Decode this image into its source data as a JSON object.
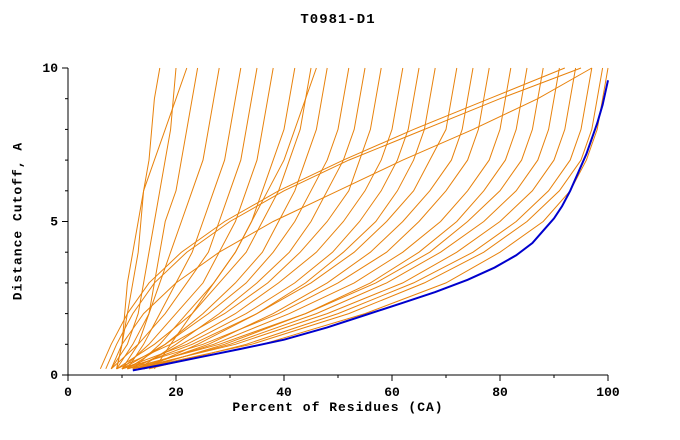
{
  "chart_data": {
    "type": "line",
    "title": "T0981-D1",
    "xlabel": "Percent of Residues (CA)",
    "ylabel": "Distance Cutoff, A",
    "xlim": [
      0,
      100
    ],
    "ylim": [
      0,
      10
    ],
    "xticks_major": [
      0,
      20,
      40,
      60,
      80,
      100
    ],
    "xticks_minor": [
      10,
      30,
      50,
      70,
      90
    ],
    "yticks_major": [
      0,
      5,
      10
    ],
    "yticks_minor": [
      1,
      2,
      3,
      4,
      6,
      7,
      8,
      9
    ],
    "grid": "off",
    "legend": "none",
    "colors": {
      "model_lines": "#e8820c",
      "highlight_line": "#0000cd",
      "axis": "#000000",
      "background": "#ffffff"
    },
    "sample_y": [
      0.2,
      1,
      2,
      3,
      4,
      5,
      6,
      7,
      8,
      9,
      10
    ],
    "model_series_x": [
      [
        9,
        10,
        11,
        12,
        13,
        13.5,
        14,
        15,
        15.5,
        16,
        17
      ],
      [
        8,
        11,
        13,
        14,
        15,
        16,
        17,
        18,
        19,
        19.5,
        20
      ],
      [
        10,
        13,
        15,
        16,
        17,
        18,
        20,
        21,
        22,
        23,
        24
      ],
      [
        9,
        12,
        15,
        17,
        19,
        21,
        23,
        25,
        26,
        27,
        28
      ],
      [
        11,
        14,
        17,
        20,
        23,
        25,
        27,
        29,
        30,
        31,
        32
      ],
      [
        8,
        13,
        18,
        22,
        26,
        28,
        30,
        32,
        33,
        34,
        35
      ],
      [
        10,
        15,
        20,
        25,
        28,
        31,
        33,
        35,
        36,
        37,
        38
      ],
      [
        12,
        17,
        22,
        27,
        31,
        34,
        36,
        38,
        40,
        41,
        42
      ],
      [
        9,
        16,
        23,
        28,
        33,
        36,
        39,
        41,
        43,
        44,
        45
      ],
      [
        11,
        18,
        25,
        31,
        36,
        39,
        42,
        44,
        46,
        47,
        48
      ],
      [
        10,
        18,
        26,
        33,
        38,
        42,
        45,
        48,
        50,
        51,
        52
      ],
      [
        13,
        20,
        28,
        35,
        41,
        45,
        48,
        51,
        53,
        54,
        55
      ],
      [
        9,
        19,
        29,
        37,
        43,
        48,
        52,
        54,
        56,
        57,
        58
      ],
      [
        12,
        21,
        31,
        39,
        46,
        51,
        55,
        58,
        60,
        61,
        62
      ],
      [
        10,
        22,
        33,
        42,
        49,
        54,
        58,
        61,
        63,
        64,
        65
      ],
      [
        14,
        24,
        35,
        44,
        51,
        57,
        61,
        64,
        66,
        67,
        68
      ],
      [
        11,
        23,
        35,
        45,
        53,
        59,
        64,
        67,
        70,
        71,
        72
      ],
      [
        13,
        26,
        38,
        48,
        56,
        62,
        67,
        71,
        73,
        74,
        75
      ],
      [
        10,
        25,
        39,
        50,
        59,
        65,
        70,
        74,
        76,
        77,
        78
      ],
      [
        12,
        27,
        41,
        53,
        62,
        69,
        74,
        78,
        80,
        81,
        82
      ],
      [
        14,
        29,
        44,
        56,
        65,
        72,
        77,
        81,
        83,
        84,
        85
      ],
      [
        11,
        28,
        44,
        57,
        67,
        74,
        80,
        84,
        86,
        87,
        88
      ],
      [
        13,
        30,
        46,
        59,
        69,
        77,
        83,
        87,
        89,
        90,
        91
      ],
      [
        12,
        31,
        48,
        62,
        72,
        80,
        86,
        90,
        92,
        93,
        94
      ],
      [
        15,
        33,
        50,
        64,
        75,
        83,
        89,
        93,
        95,
        96,
        97
      ],
      [
        13,
        34,
        52,
        66,
        77,
        85,
        91,
        95,
        97,
        98,
        99
      ],
      [
        14,
        36,
        55,
        70,
        80,
        88,
        93,
        96,
        98,
        99,
        100
      ],
      [
        7,
        9,
        12,
        16,
        22,
        30,
        40,
        52,
        66,
        80,
        95
      ],
      [
        8,
        10,
        14,
        20,
        28,
        38,
        50,
        62,
        75,
        87,
        97
      ],
      [
        9,
        10,
        10.5,
        11,
        12,
        13,
        14,
        16,
        18,
        20,
        22
      ],
      [
        6,
        8,
        11,
        15,
        21,
        29,
        39,
        51,
        64,
        78,
        92
      ],
      [
        16,
        19,
        23,
        27,
        31,
        34,
        37,
        40,
        42,
        44,
        46
      ]
    ],
    "highlight_points": [
      [
        12,
        0.15
      ],
      [
        18,
        0.35
      ],
      [
        25,
        0.6
      ],
      [
        32,
        0.85
      ],
      [
        40,
        1.15
      ],
      [
        48,
        1.55
      ],
      [
        55,
        1.95
      ],
      [
        62,
        2.35
      ],
      [
        68,
        2.7
      ],
      [
        74,
        3.1
      ],
      [
        79,
        3.5
      ],
      [
        83,
        3.9
      ],
      [
        86,
        4.3
      ],
      [
        88,
        4.7
      ],
      [
        90,
        5.1
      ],
      [
        91.5,
        5.5
      ],
      [
        93,
        6.0
      ],
      [
        94.5,
        6.6
      ],
      [
        96,
        7.2
      ],
      [
        97,
        7.7
      ],
      [
        98,
        8.2
      ],
      [
        99,
        8.8
      ],
      [
        99.5,
        9.2
      ],
      [
        100,
        9.6
      ]
    ]
  }
}
